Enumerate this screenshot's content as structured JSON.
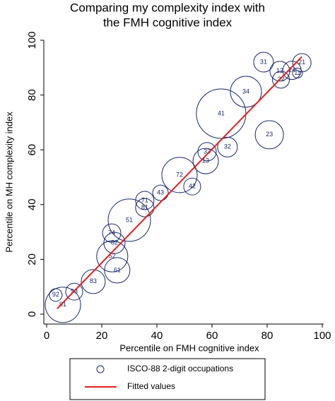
{
  "chart_data": {
    "type": "bubble",
    "title": [
      "Comparing my complexity index with",
      "the FMH cognitive index"
    ],
    "x_label": "Percentile on FMH cognitive index",
    "y_label": "Percentile on MH complexity index",
    "xlim": [
      0,
      100
    ],
    "ylim": [
      0,
      100
    ],
    "xticks": [
      0,
      20,
      40,
      60,
      80,
      100
    ],
    "yticks": [
      0,
      20,
      40,
      60,
      80,
      100
    ],
    "series": [
      {
        "name": "ISCO-88 2-digit occupations",
        "color": "#1a2a6c",
        "labels": [
          "21",
          "24",
          "11",
          "31",
          "12",
          "22",
          "34",
          "41",
          "23",
          "32",
          "33",
          "13",
          "72",
          "42",
          "43",
          "71",
          "81",
          "51",
          "74",
          "82",
          "52",
          "61",
          "83",
          "91",
          "92",
          "93"
        ],
        "x": [
          92.6,
          89,
          91,
          78.7,
          84.6,
          85,
          72.3,
          63.3,
          80.8,
          65.6,
          58.2,
          57.7,
          48.2,
          52.8,
          41.3,
          35.6,
          35.6,
          30,
          23.6,
          24.6,
          23.8,
          25.6,
          16.9,
          5.9,
          3.3,
          10
        ],
        "values": [
          91.8,
          89,
          88,
          92,
          88.7,
          85.6,
          81.2,
          73.2,
          65.5,
          61,
          59.3,
          55.9,
          50.8,
          46.6,
          44.3,
          41.5,
          38.9,
          34.3,
          29.6,
          26,
          21.1,
          16,
          11.9,
          3.4,
          7,
          8.2
        ],
        "sizes": [
          13,
          13,
          7,
          14,
          14,
          12,
          22,
          35,
          20,
          14,
          13,
          18,
          25,
          12,
          11,
          13,
          13,
          30,
          13,
          15,
          22,
          18,
          17,
          25,
          9,
          12
        ]
      },
      {
        "name": "Fitted values",
        "color": "#e02020",
        "type": "line",
        "x": [
          3.8,
          92.6
        ],
        "values": [
          2,
          94
        ]
      }
    ]
  }
}
